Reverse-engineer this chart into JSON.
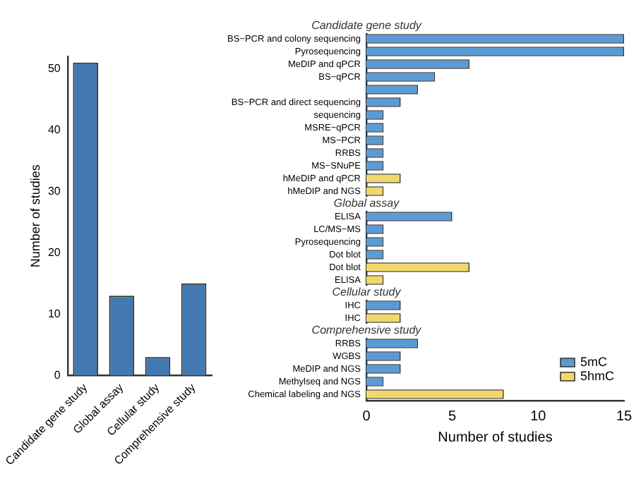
{
  "chart_data": [
    {
      "type": "bar",
      "categories": [
        "Candidate gene study",
        "Global assay",
        "Cellular study",
        "Comprehensive study"
      ],
      "values": [
        51,
        13,
        3,
        15
      ],
      "color": "#4279b0",
      "ylabel": "Number of studies",
      "ylim": [
        0,
        52
      ],
      "yticks": [
        0,
        10,
        20,
        30,
        40,
        50
      ]
    },
    {
      "type": "bar",
      "orientation": "horizontal",
      "xlabel": "Number of studies",
      "xlim": [
        0,
        15
      ],
      "xticks": [
        0,
        5,
        10,
        15
      ],
      "legend": "bottom right",
      "annotations": [
        "Candidate gene study",
        "Global assay",
        "Cellular study",
        "Comprehensive study"
      ],
      "categories": [
        null,
        "BS−PCR and colony sequencing",
        "Pyrosequencing",
        "MeDIP and qPCR",
        "BS−qPCR",
        null,
        "BS−PCR and direct sequencing",
        "sequencing",
        "MSRE−qPCR",
        "MS−PCR",
        "RRBS",
        "MS−SNuPE",
        "hMeDIP and qPCR",
        "hMeDIP and NGS",
        null,
        "ELISA",
        "LC/MS−MS",
        "Pyrosequencing",
        "Dot blot",
        "Dot blot",
        "ELISA",
        null,
        "IHC",
        "IHC",
        null,
        "RRBS",
        "WGBS",
        "MeDIP and NGS",
        "Methylseq and NGS",
        "Chemical labeling and NGS"
      ],
      "series": [
        {
          "name": "5mC",
          "color": "#5b9bd5",
          "values": [
            null,
            15,
            15,
            6,
            4,
            3,
            2,
            1,
            1,
            1,
            1,
            1,
            null,
            null,
            null,
            5,
            1,
            1,
            1,
            null,
            null,
            null,
            2,
            null,
            null,
            3,
            2,
            2,
            1,
            null
          ]
        },
        {
          "name": "5hmC",
          "color": "#f2d86a",
          "values": [
            null,
            null,
            null,
            null,
            null,
            null,
            null,
            null,
            null,
            null,
            null,
            null,
            2,
            1,
            null,
            null,
            null,
            null,
            null,
            6,
            1,
            null,
            null,
            2,
            null,
            null,
            null,
            null,
            null,
            8
          ]
        }
      ]
    }
  ]
}
